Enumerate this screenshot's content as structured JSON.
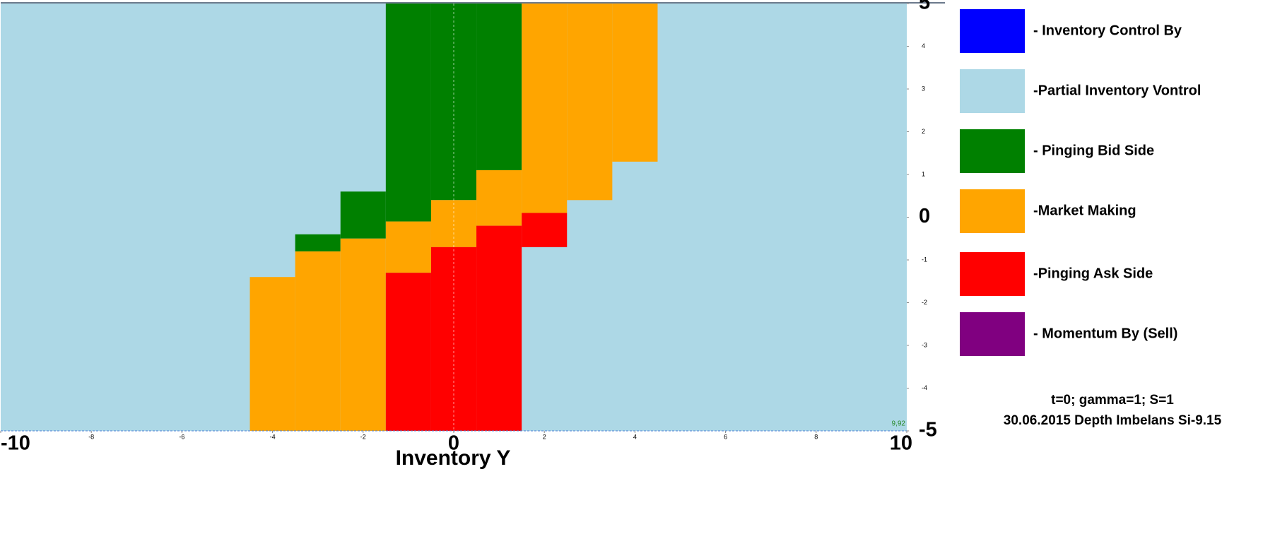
{
  "chart_data": {
    "type": "region",
    "x_label": "Inventory Y",
    "xlim": [
      -10,
      10
    ],
    "ylim": [
      -5,
      5
    ],
    "xticks": [
      -10,
      -8,
      -6,
      -4,
      -2,
      0,
      2,
      4,
      6,
      8,
      10
    ],
    "yticks": [
      -5,
      -4,
      -3,
      -2,
      -1,
      0,
      1,
      2,
      3,
      4,
      5
    ],
    "corner_label": "9,92",
    "annotations": [
      "t=0;  gamma=1;  S=1",
      "30.06.2015  Depth Imbelans Si-9.15"
    ],
    "series": [
      {
        "name": "- Inventory Control By",
        "color": "#0000ff",
        "rects": []
      },
      {
        "name": "-Partial Inventory Vontrol",
        "color": "#add8e6",
        "rects": [
          [
            -10,
            10,
            -5,
            5
          ]
        ]
      },
      {
        "name": "- Pinging Bid Side",
        "color": "#008000",
        "rects": [
          [
            -3.5,
            -2.5,
            -0.8,
            -0.4
          ],
          [
            -2.5,
            -1.5,
            -0.5,
            0.6
          ],
          [
            -1.5,
            -0.5,
            -0.1,
            5
          ],
          [
            -0.5,
            0.5,
            0.4,
            5
          ],
          [
            0.5,
            1.5,
            1.1,
            5
          ]
        ]
      },
      {
        "name": "-Market Making",
        "color": "#ffa500",
        "rects": [
          [
            -4.5,
            -3.5,
            -5,
            -1.4
          ],
          [
            -3.5,
            -2.5,
            -5,
            -0.8
          ],
          [
            -2.5,
            -1.5,
            -5,
            -0.5
          ],
          [
            -1.5,
            -0.5,
            -1.3,
            -0.1
          ],
          [
            -0.5,
            0.5,
            -0.7,
            0.4
          ],
          [
            0.5,
            1.5,
            -0.2,
            1.1
          ],
          [
            1.5,
            2.5,
            0.1,
            5
          ],
          [
            2.5,
            3.5,
            0.4,
            5
          ],
          [
            3.5,
            4.5,
            1.3,
            5
          ]
        ]
      },
      {
        "name": "-Pinging Ask Side",
        "color": "#ff0000",
        "rects": [
          [
            -1.5,
            -0.5,
            -5,
            -1.3
          ],
          [
            -0.5,
            0.5,
            -5,
            -0.7
          ],
          [
            0.5,
            1.5,
            -5,
            -0.2
          ],
          [
            1.5,
            2.5,
            -0.7,
            0.1
          ]
        ]
      },
      {
        "name": "- Momentum By (Sell)",
        "color": "#800080",
        "rects": []
      }
    ]
  }
}
